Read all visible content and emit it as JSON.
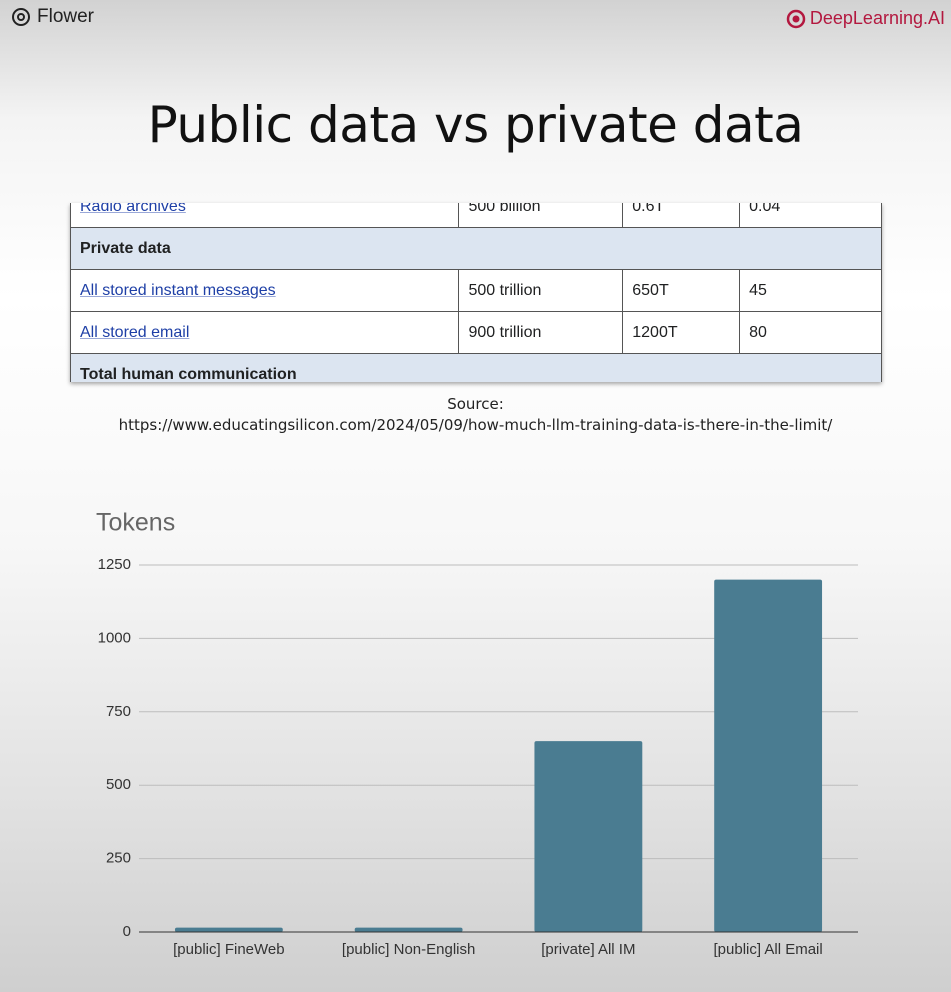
{
  "header": {
    "left_logo": "Flower",
    "right_logo": "DeepLearning.AI"
  },
  "title": "Public data vs private data",
  "table": {
    "rows": [
      [
        "Radio archives",
        "500 billion",
        "0.6T",
        "0.04"
      ],
      [
        "Private data"
      ],
      [
        "All stored instant messages",
        "500 trillion",
        "650T",
        "45"
      ],
      [
        "All stored email",
        "900 trillion",
        "1200T",
        "80"
      ],
      [
        "Total human communication"
      ]
    ]
  },
  "source": {
    "label": "Source:",
    "url": "https://www.educatingsilicon.com/2024/05/09/how-much-llm-training-data-is-there-in-the-limit/"
  },
  "chart_data": {
    "type": "bar",
    "title": "Tokens",
    "categories": [
      "[public] FineWeb",
      "[public] Non-English",
      "[private] All IM",
      "[public] All Email"
    ],
    "values": [
      15,
      15,
      650,
      1200
    ],
    "color": "#4a7c91",
    "ylim": [
      0,
      1250
    ],
    "yticks": [
      0,
      250,
      500,
      750,
      1000,
      1250
    ],
    "grid": true
  }
}
